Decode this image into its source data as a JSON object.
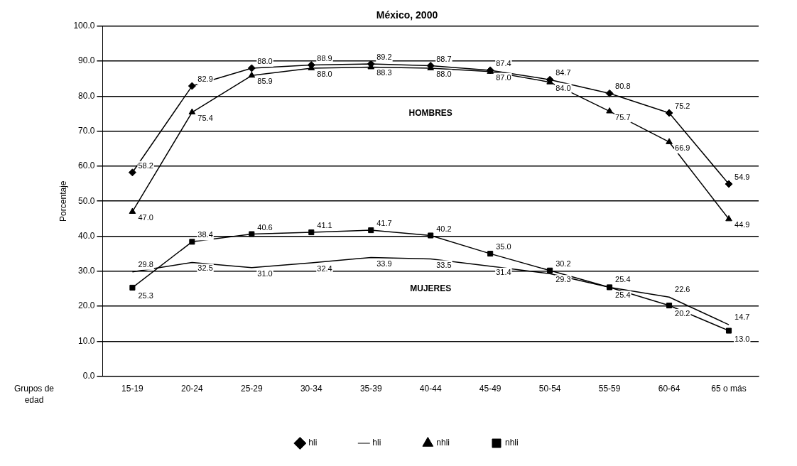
{
  "chart_data": {
    "type": "line",
    "title": "México, 2000",
    "xlabel": "Grupos de edad",
    "ylabel": "Porcentaje",
    "categories": [
      "15-19",
      "20-24",
      "25-29",
      "30-34",
      "35-39",
      "40-44",
      "45-49",
      "50-54",
      "55-59",
      "60-64",
      "65 o más"
    ],
    "series": [
      {
        "name": "hli",
        "color": "#000000",
        "marker": "diamond",
        "values": [
          58.2,
          82.9,
          88.0,
          88.9,
          89.2,
          88.7,
          87.4,
          84.7,
          80.8,
          75.2,
          54.9
        ],
        "value_labels": [
          "58.2",
          "82.9",
          "88.0",
          "88.9",
          "89.2",
          "88.7",
          "87.4",
          "84.7",
          "80.8",
          "75.2",
          "54.9"
        ]
      },
      {
        "name": "hli",
        "color": "#000000",
        "marker": "none",
        "values": [
          29.8,
          32.5,
          31.0,
          32.4,
          33.9,
          33.5,
          31.4,
          29.3,
          25.4,
          22.6,
          14.7
        ],
        "value_labels": [
          "29.8",
          "32.5",
          "31.0",
          "32.4",
          "33.9",
          "33.5",
          "31.4",
          "29.3",
          "25.4",
          "22.6",
          "14.7"
        ]
      },
      {
        "name": "nhli",
        "color": "#000000",
        "marker": "triangle",
        "values": [
          47.0,
          75.4,
          85.9,
          88.0,
          88.3,
          88.0,
          87.0,
          84.0,
          75.7,
          66.9,
          44.9
        ],
        "value_labels": [
          "47.0",
          "75.4",
          "85.9",
          "88.0",
          "88.3",
          "88.0",
          "87.0",
          "84.0",
          "75.7",
          "66.9",
          "44.9"
        ]
      },
      {
        "name": "nhli",
        "color": "#000000",
        "marker": "square",
        "values": [
          25.3,
          38.4,
          40.6,
          41.1,
          41.7,
          40.2,
          35.0,
          30.2,
          25.4,
          20.2,
          13.0
        ],
        "value_labels": [
          "25.3",
          "38.4",
          "40.6",
          "41.1",
          "41.7",
          "40.2",
          "35.0",
          "30.2",
          "25.4",
          "20.2",
          "13.0"
        ]
      }
    ],
    "ylim": [
      0,
      100
    ],
    "yticks": [
      {
        "value": 0,
        "label": "0.0"
      },
      {
        "value": 10,
        "label": "10.0"
      },
      {
        "value": 20,
        "label": "20.0"
      },
      {
        "value": 30,
        "label": "30.0"
      },
      {
        "value": 40,
        "label": "40.0"
      },
      {
        "value": 50,
        "label": "50.0"
      },
      {
        "value": 60,
        "label": "60.0"
      },
      {
        "value": 70,
        "label": "70.0"
      },
      {
        "value": 80,
        "label": "80.0"
      },
      {
        "value": 90,
        "label": "90.0"
      },
      {
        "value": 100,
        "label": "100.0"
      }
    ],
    "grid": "y",
    "legend": "bottom",
    "annotations": [
      "HOMBRES",
      "MUJERES"
    ]
  }
}
